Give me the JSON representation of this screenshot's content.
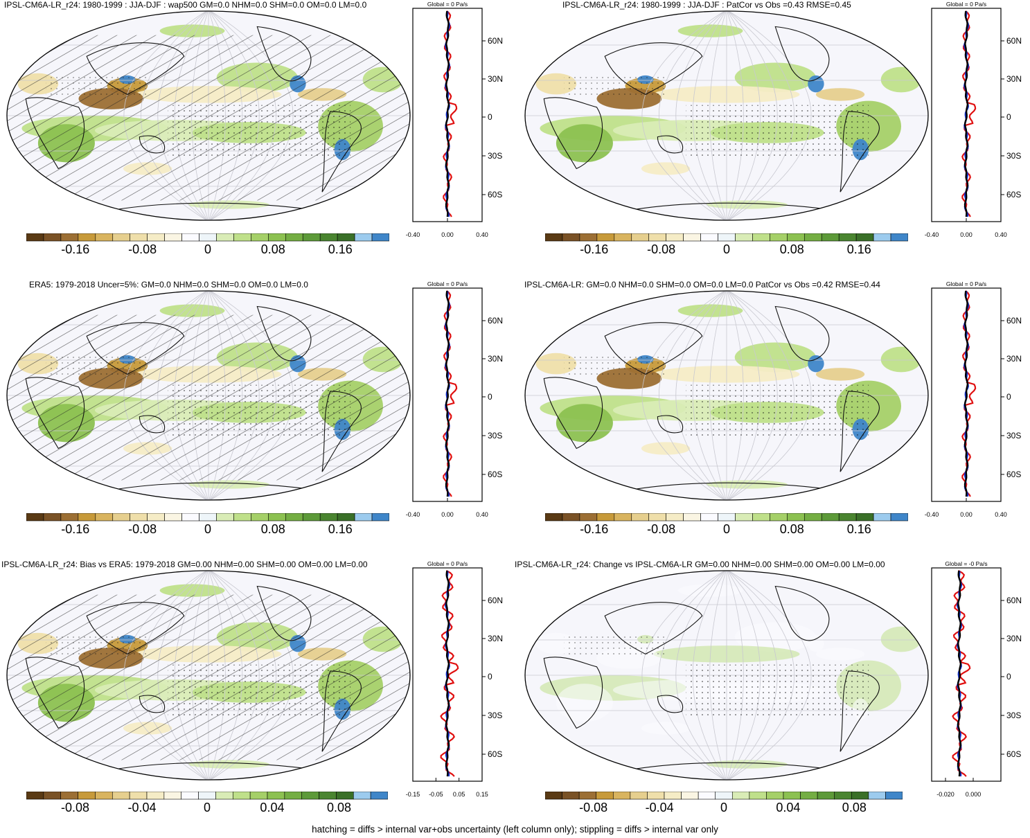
{
  "palette": [
    "#5a3a14",
    "#7a5226",
    "#9c6f34",
    "#c79a3a",
    "#d9b45f",
    "#e6cf8e",
    "#efdfaa",
    "#f5ecc6",
    "#faf5e3",
    "#fbfbff",
    "#eef5f9",
    "#d9ecb6",
    "#bfe08a",
    "#a5d068",
    "#8cc151",
    "#74ae43",
    "#5d9a39",
    "#4a8530",
    "#3a7028",
    "#9ccbee",
    "#3f86c9"
  ],
  "footer": "hatching = diffs > internal var+obs uncertainty (left column only); stippling = diffs > internal var only",
  "panels": [
    {
      "id": "p1",
      "title": "IPSL-CM6A-LR_r24: 1980-1999 : JJA-DJF : wap500 GM=0.0 NHM=0.0 SHM=0.0 OM=0.0 LM=0.0",
      "global_label": "Global = 0 Pa/s",
      "lat_labels": [
        "60N",
        "30N",
        "0",
        "30S",
        "60S"
      ],
      "profile_ticks": [
        "-0.40",
        "0.00",
        "0.40"
      ],
      "cbar_labels": [
        "-0.16",
        "-0.08",
        "0",
        "0.08",
        "0.16"
      ],
      "hatch": true
    },
    {
      "id": "p2",
      "title": "IPSL-CM6A-LR_r24: 1980-1999 : JJA-DJF : PatCor vs Obs =0.43 RMSE=0.45",
      "global_label": "Global = 0 Pa/s",
      "lat_labels": [
        "60N",
        "30N",
        "0",
        "30S",
        "60S"
      ],
      "profile_ticks": [
        "-0.40",
        "0.00",
        "0.40"
      ],
      "cbar_labels": [
        "-0.16",
        "-0.08",
        "0",
        "0.08",
        "0.16"
      ],
      "hatch": false
    },
    {
      "id": "p3",
      "title": "ERA5: 1979-2018 Uncer=5%: GM=0.0 NHM=0.0 SHM=0.0 OM=0.0 LM=0.0",
      "global_label": "Global = 0 Pa/s",
      "lat_labels": [
        "60N",
        "30N",
        "0",
        "30S",
        "60S"
      ],
      "profile_ticks": [
        "-0.40",
        "0.00",
        "0.40"
      ],
      "cbar_labels": [
        "-0.16",
        "-0.08",
        "0",
        "0.08",
        "0.16"
      ],
      "hatch": true
    },
    {
      "id": "p4",
      "title": "IPSL-CM6A-LR: GM=0.0 NHM=0.0 SHM=0.0 OM=0.0 LM=0.0 PatCor vs Obs =0.42 RMSE=0.44",
      "global_label": "Global = 0 Pa/s",
      "lat_labels": [
        "60N",
        "30N",
        "0",
        "30S",
        "60S"
      ],
      "profile_ticks": [
        "-0.40",
        "0.00",
        "0.40"
      ],
      "cbar_labels": [
        "-0.16",
        "-0.08",
        "0",
        "0.08",
        "0.16"
      ],
      "hatch": false
    },
    {
      "id": "p5",
      "title": "IPSL-CM6A-LR_r24: Bias vs ERA5: 1979-2018 GM=0.00 NHM=0.00 SHM=0.00 OM=0.00 LM=0.00",
      "global_label": "Global = 0 Pa/s",
      "lat_labels": [
        "60N",
        "30N",
        "0",
        "30S",
        "60S"
      ],
      "profile_ticks": [
        "-0.15",
        "-0.05",
        "0.05",
        "0.15"
      ],
      "cbar_labels": [
        "-0.08",
        "-0.04",
        "0",
        "0.04",
        "0.08"
      ],
      "hatch": true
    },
    {
      "id": "p6",
      "title": "IPSL-CM6A-LR_r24: Change vs IPSL-CM6A-LR GM=0.00 NHM=0.00 SHM=0.00 OM=0.00 LM=0.00",
      "global_label": "Global = -0 Pa/s",
      "lat_labels": [
        "60N",
        "30N",
        "0",
        "30S",
        "60S"
      ],
      "profile_ticks": [
        "-0.020",
        "0.000"
      ],
      "cbar_labels": [
        "-0.08",
        "-0.04",
        "0",
        "0.04",
        "0.08"
      ],
      "hatch": false
    }
  ]
}
